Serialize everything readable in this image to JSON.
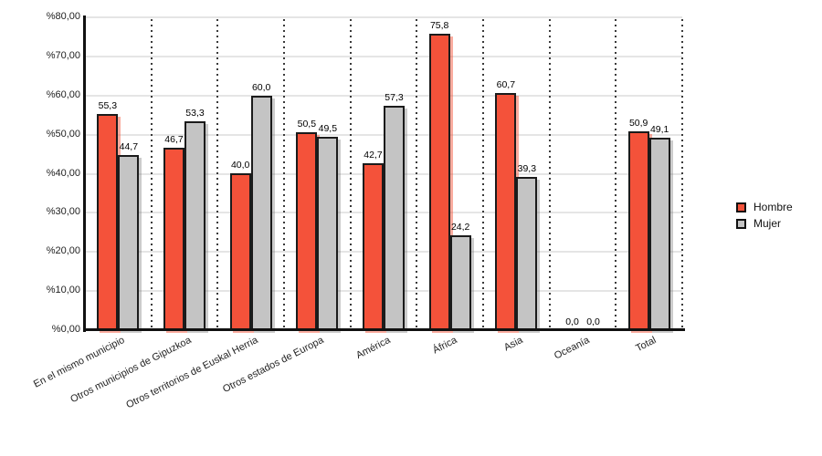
{
  "chart_data": {
    "type": "bar",
    "title": "",
    "xlabel": "",
    "ylabel": "",
    "ylim": [
      0,
      80
    ],
    "grid": "horizontal solid every 10, dotted vertical category separators",
    "legend_position": "right",
    "background_color": "#FFFFFF",
    "axis_color": "#111111",
    "gridline_color": "#E5E5E5",
    "separator_color": "#3A3A3A",
    "categories": [
      "En el mismo municipio",
      "Otros municipios de Gipuzkoa",
      "Otros territorios de Euskal Herria",
      "Otros estados de Europa",
      "América",
      "África",
      "Asia",
      "Oceanía",
      "Total"
    ],
    "series": [
      {
        "name": "Hombre",
        "color": "#F4523A",
        "shadow_color": "rgba(246,90,64,0.5)",
        "values": [
          55.3,
          46.7,
          40.0,
          50.5,
          42.7,
          75.8,
          60.7,
          0.0,
          50.9
        ],
        "labels": [
          "55,3",
          "46,7",
          "40,0",
          "50,5",
          "42,7",
          "75,8",
          "60,7",
          "0,0",
          "50,9"
        ]
      },
      {
        "name": "Mujer",
        "color": "#C4C4C4",
        "shadow_color": "rgba(110,110,110,0.35)",
        "values": [
          44.7,
          53.3,
          60.0,
          49.5,
          57.3,
          24.2,
          39.3,
          0.0,
          49.1
        ],
        "labels": [
          "44,7",
          "53,3",
          "60,0",
          "49,5",
          "57,3",
          "24,2",
          "39,3",
          "0,0",
          "49,1"
        ]
      }
    ],
    "y_ticks": {
      "values": [
        0,
        10,
        20,
        30,
        40,
        50,
        60,
        70,
        80
      ],
      "labels": [
        "%0,00",
        "%10,00",
        "%20,00",
        "%30,00",
        "%40,00",
        "%50,00",
        "%60,00",
        "%70,00",
        "%80,00"
      ]
    }
  }
}
